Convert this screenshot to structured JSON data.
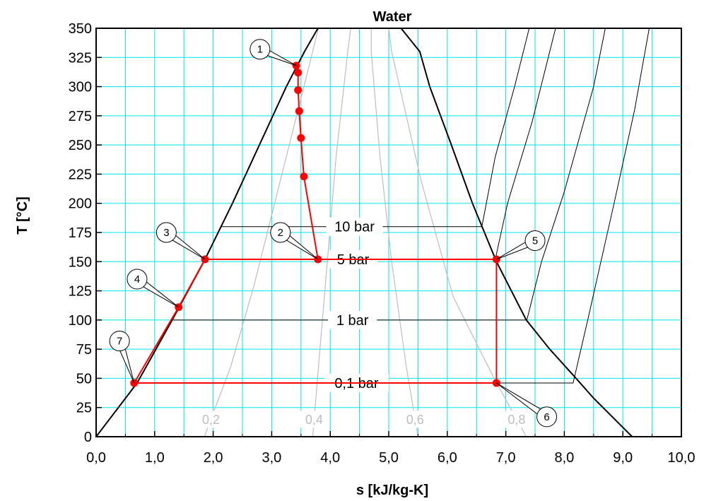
{
  "chart_data": {
    "type": "line",
    "title": "Water",
    "xlabel": "s [kJ/kg-K]",
    "ylabel": "T [°C]",
    "xlim": [
      0,
      10
    ],
    "ylim": [
      0,
      350
    ],
    "grid": true,
    "grid_color": "#00e5ee",
    "x_ticks": [
      "0,0",
      "1,0",
      "2,0",
      "3,0",
      "4,0",
      "5,0",
      "6,0",
      "7,0",
      "8,0",
      "9,0",
      "10,0"
    ],
    "y_ticks": [
      "0",
      "25",
      "50",
      "75",
      "100",
      "125",
      "150",
      "175",
      "200",
      "225",
      "250",
      "275",
      "300",
      "325",
      "350"
    ],
    "saturation_dome": {
      "color": "#000000",
      "liquid": [
        [
          0.0,
          0
        ],
        [
          0.7,
          46
        ],
        [
          1.3,
          100
        ],
        [
          1.84,
          150
        ],
        [
          2.33,
          200
        ],
        [
          2.79,
          250
        ],
        [
          3.25,
          300
        ],
        [
          3.56,
          330
        ],
        [
          3.79,
          350
        ]
      ],
      "vapor": [
        [
          5.21,
          350
        ],
        [
          5.53,
          330
        ],
        [
          5.7,
          300
        ],
        [
          6.07,
          250
        ],
        [
          6.43,
          200
        ],
        [
          6.84,
          150
        ],
        [
          7.35,
          100
        ],
        [
          7.75,
          75
        ],
        [
          8.2,
          50
        ],
        [
          8.5,
          33
        ],
        [
          9.16,
          0
        ]
      ]
    },
    "isobars": [
      {
        "label": "10 bar",
        "color": "#000000",
        "points": [
          [
            2.14,
            180
          ],
          [
            6.59,
            180
          ],
          [
            6.82,
            240
          ],
          [
            7.15,
            300
          ],
          [
            7.4,
            350
          ]
        ]
      },
      {
        "label": "5 bar",
        "color": "#ff0000",
        "points": [
          [
            1.86,
            152
          ],
          [
            6.82,
            152
          ],
          [
            7.03,
            200
          ],
          [
            7.45,
            270
          ],
          [
            7.85,
            350
          ]
        ]
      },
      {
        "label": "1 bar",
        "color": "#000000",
        "points": [
          [
            1.3,
            100
          ],
          [
            7.36,
            100
          ],
          [
            7.61,
            150
          ],
          [
            8.0,
            210
          ],
          [
            8.5,
            300
          ],
          [
            8.7,
            350
          ]
        ]
      },
      {
        "label": "0,1 bar",
        "color": "#000000",
        "points": [
          [
            0.65,
            46
          ],
          [
            8.15,
            46
          ],
          [
            8.4,
            100
          ],
          [
            8.85,
            200
          ],
          [
            9.2,
            280
          ],
          [
            9.45,
            350
          ]
        ]
      }
    ],
    "quality_lines": [
      {
        "label": "0,2",
        "color": "#bdbdbd",
        "points": [
          [
            1.85,
            0
          ],
          [
            2.3,
            60
          ],
          [
            2.7,
            130
          ],
          [
            3.05,
            200
          ],
          [
            3.5,
            290
          ],
          [
            3.8,
            350
          ]
        ]
      },
      {
        "label": "0,4",
        "color": "#bdbdbd",
        "points": [
          [
            3.7,
            0
          ],
          [
            3.8,
            60
          ],
          [
            3.95,
            150
          ],
          [
            4.1,
            240
          ],
          [
            4.3,
            330
          ],
          [
            4.35,
            350
          ]
        ]
      },
      {
        "label": "0,6",
        "color": "#bdbdbd",
        "points": [
          [
            5.5,
            0
          ],
          [
            5.3,
            60
          ],
          [
            5.05,
            150
          ],
          [
            4.85,
            240
          ],
          [
            4.7,
            330
          ],
          [
            4.7,
            350
          ]
        ]
      },
      {
        "label": "0,8",
        "color": "#bdbdbd",
        "points": [
          [
            7.35,
            0
          ],
          [
            6.8,
            50
          ],
          [
            6.1,
            120
          ],
          [
            5.55,
            220
          ],
          [
            5.05,
            330
          ],
          [
            5.0,
            350
          ]
        ]
      }
    ],
    "cycle": {
      "color": "#ff0000",
      "path": [
        [
          3.42,
          318
        ],
        [
          3.45,
          312
        ],
        [
          3.45,
          297
        ],
        [
          3.47,
          279
        ],
        [
          3.5,
          256
        ],
        [
          3.55,
          223
        ],
        [
          3.79,
          152
        ],
        [
          6.84,
          152
        ],
        [
          6.84,
          46
        ],
        [
          0.65,
          46
        ],
        [
          1.41,
          111
        ],
        [
          1.86,
          152
        ],
        [
          3.79,
          152
        ]
      ],
      "points": [
        [
          3.42,
          318
        ],
        [
          3.45,
          312
        ],
        [
          3.45,
          297
        ],
        [
          3.47,
          279
        ],
        [
          3.5,
          256
        ],
        [
          3.55,
          223
        ],
        [
          3.79,
          152
        ],
        [
          1.86,
          152
        ],
        [
          1.41,
          111
        ],
        [
          0.65,
          46
        ],
        [
          6.84,
          152
        ],
        [
          6.84,
          46
        ]
      ]
    },
    "state_labels": [
      {
        "label": "1",
        "at": [
          3.42,
          318
        ],
        "bubble": [
          2.8,
          332
        ]
      },
      {
        "label": "2",
        "at": [
          3.79,
          152
        ],
        "bubble": [
          3.15,
          175
        ]
      },
      {
        "label": "3",
        "at": [
          1.86,
          152
        ],
        "bubble": [
          1.2,
          175
        ]
      },
      {
        "label": "4",
        "at": [
          1.41,
          111
        ],
        "bubble": [
          0.7,
          135
        ]
      },
      {
        "label": "5",
        "at": [
          6.84,
          152
        ],
        "bubble": [
          7.5,
          168
        ]
      },
      {
        "label": "6",
        "at": [
          6.84,
          46
        ],
        "bubble": [
          7.7,
          17
        ]
      },
      {
        "label": "7",
        "at": [
          0.65,
          46
        ],
        "bubble": [
          0.4,
          82
        ]
      }
    ]
  }
}
